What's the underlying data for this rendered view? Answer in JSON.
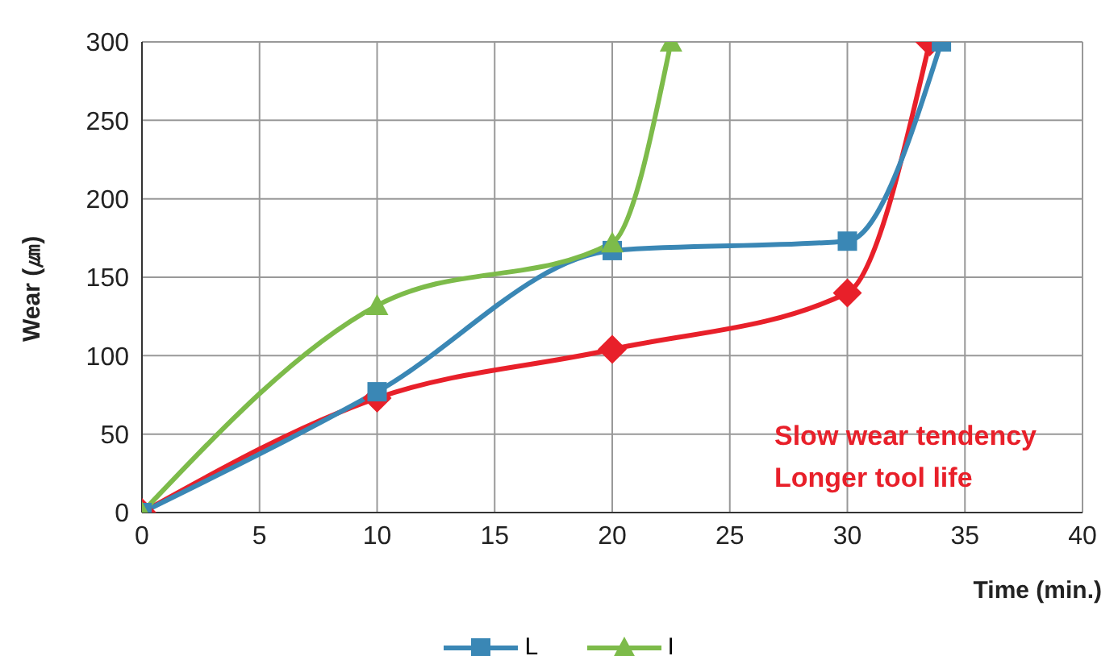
{
  "chart_data": {
    "type": "line",
    "xlabel": "Time (min.)",
    "ylabel": "Wear (㎛)",
    "xlim": [
      0,
      40
    ],
    "xticks": [
      0,
      5,
      10,
      15,
      20,
      25,
      30,
      35,
      40
    ],
    "ylim": [
      0,
      300
    ],
    "yticks": [
      0,
      50,
      100,
      150,
      200,
      250,
      300
    ],
    "grid": true,
    "legend": "bottom",
    "annotations": [
      "Slow wear tendency",
      "Longer tool life"
    ],
    "series": [
      {
        "color": "#e8202a",
        "marker": "diamond",
        "x": [
          0,
          10,
          20,
          30,
          33.5
        ],
        "values": [
          0,
          73,
          104,
          140,
          300
        ]
      },
      {
        "name": "L",
        "color": "#3a87b5",
        "marker": "square",
        "x": [
          0,
          10,
          20,
          30,
          34
        ],
        "values": [
          0,
          77,
          167,
          173,
          300
        ]
      },
      {
        "name": "I",
        "color": "#7dbb4a",
        "marker": "triangle",
        "x": [
          0,
          10,
          20,
          22.5
        ],
        "values": [
          0,
          132,
          172,
          300
        ]
      }
    ]
  }
}
